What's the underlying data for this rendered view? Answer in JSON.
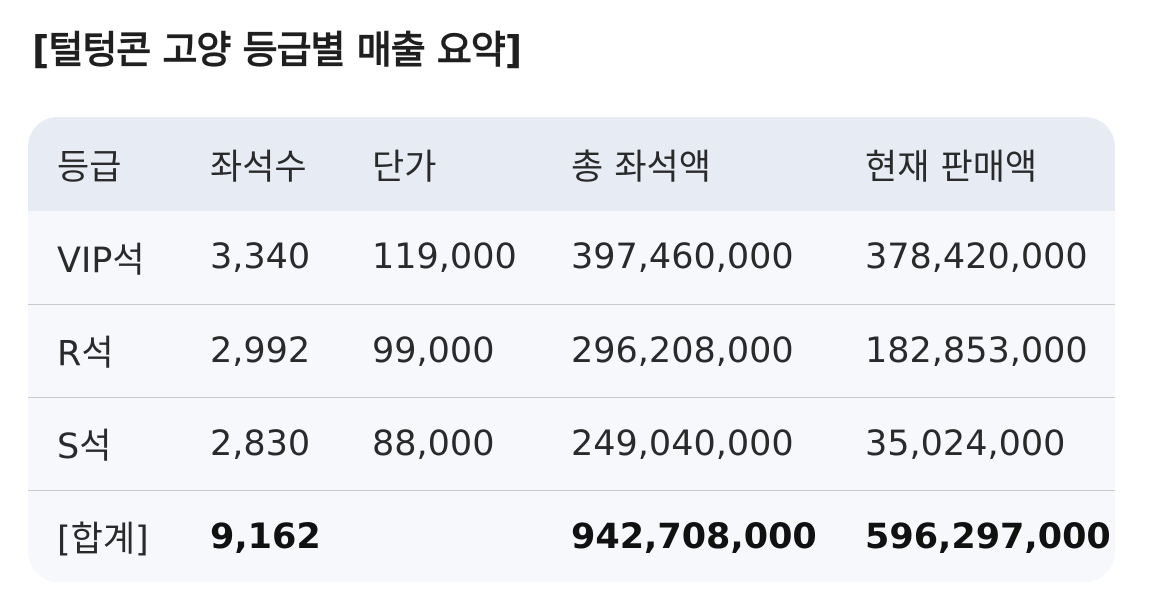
{
  "title": "[털텅콘 고양 등급별 매출 요약]",
  "table": {
    "headers": [
      "등급",
      "좌석수",
      "단가",
      "총 좌석액",
      "현재 판매액"
    ],
    "rows": [
      {
        "grade": "VIP석",
        "seats": "3,340",
        "price": "119,000",
        "total": "397,460,000",
        "sold": "378,420,000"
      },
      {
        "grade": "R석",
        "seats": "2,992",
        "price": "99,000",
        "total": "296,208,000",
        "sold": "182,853,000"
      },
      {
        "grade": "S석",
        "seats": "2,830",
        "price": "88,000",
        "total": "249,040,000",
        "sold": "35,024,000"
      },
      {
        "grade": "[합계]",
        "seats": "9,162",
        "price": "",
        "total": "942,708,000",
        "sold": "596,297,000"
      }
    ]
  }
}
